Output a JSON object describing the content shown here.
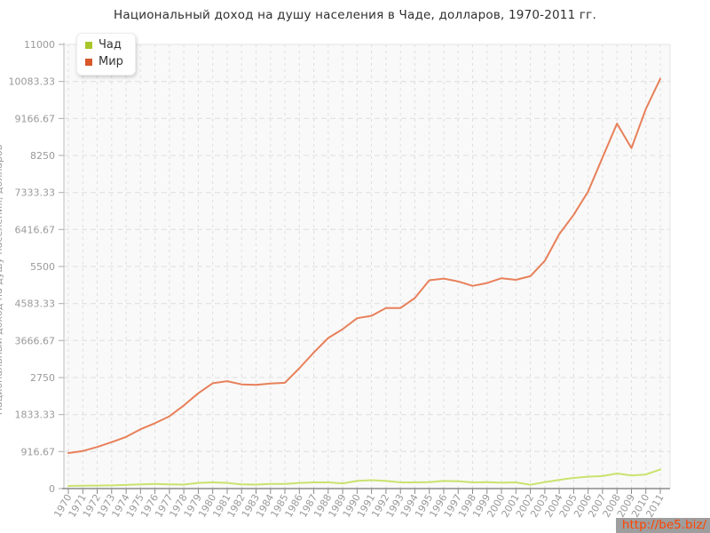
{
  "page": {
    "watermark": "http://be5.biz/"
  },
  "colors": {
    "background": "#ffffff",
    "plot_background": "#f9f9f9",
    "grid": "#dedede",
    "plot_border": "#e4e4e4",
    "axis_line": "#8a8a8a",
    "tick_label": "#9a9a9a",
    "title_text": "#2f2f2f",
    "watermark_bg": "#9e9e9e",
    "watermark_text": "#ff4400",
    "chad_line": "#c9e36e",
    "world_line": "#e8805a"
  },
  "chart_data": {
    "type": "line",
    "title": "Национальный доход на душу населения в Чаде, долларов, 1970-2011 гг.",
    "ylabel": "Национальный доход на душу населения, долларов",
    "xlabel": "",
    "legend_position": "top-left",
    "grid": true,
    "plot_bg": "#f9f9f9",
    "ylim": [
      0,
      11000
    ],
    "yticks": [
      0,
      916.67,
      1833.33,
      2750,
      3666.67,
      4583.33,
      5500,
      6416.67,
      7333.33,
      8250,
      9166.67,
      10083.33,
      11000
    ],
    "x": [
      1970,
      1971,
      1972,
      1973,
      1974,
      1975,
      1976,
      1977,
      1978,
      1979,
      1980,
      1981,
      1982,
      1983,
      1984,
      1985,
      1986,
      1987,
      1988,
      1989,
      1990,
      1991,
      1992,
      1993,
      1994,
      1995,
      1996,
      1997,
      1998,
      1999,
      2000,
      2001,
      2002,
      2003,
      2004,
      2005,
      2006,
      2007,
      2008,
      2009,
      2010,
      2011
    ],
    "series": [
      {
        "name": "Чад",
        "color": "#c9e36e",
        "legend_color": "#a8c629",
        "values": [
          65,
          70,
          75,
          80,
          90,
          105,
          115,
          105,
          100,
          140,
          155,
          140,
          105,
          100,
          115,
          115,
          140,
          155,
          155,
          130,
          190,
          210,
          190,
          155,
          155,
          160,
          190,
          180,
          155,
          160,
          145,
          155,
          95,
          160,
          215,
          265,
          295,
          310,
          375,
          325,
          350,
          470
        ]
      },
      {
        "name": "Мир",
        "color": "#e8805a",
        "legend_color": "#d8572b",
        "values": [
          880,
          930,
          1030,
          1150,
          1280,
          1470,
          1620,
          1790,
          2060,
          2360,
          2610,
          2660,
          2580,
          2570,
          2600,
          2620,
          2980,
          3370,
          3730,
          3950,
          4220,
          4280,
          4470,
          4470,
          4720,
          5160,
          5200,
          5130,
          5020,
          5090,
          5210,
          5170,
          5260,
          5640,
          6300,
          6780,
          7360,
          8200,
          9040,
          8430,
          9400,
          10150
        ]
      }
    ]
  }
}
